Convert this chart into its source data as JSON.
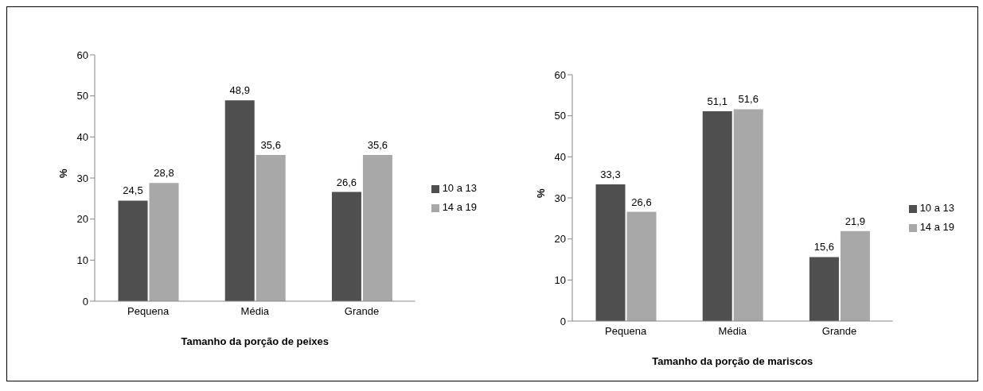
{
  "chart_data": [
    {
      "type": "bar",
      "xlabel": "Tamanho da porção de peixes",
      "ylabel": "%",
      "categories": [
        "Pequena",
        "Média",
        "Grande"
      ],
      "series": [
        {
          "name": "10 a 13",
          "color": "#4f4f4f",
          "values": [
            24.5,
            48.9,
            26.6
          ],
          "value_labels": [
            "24,5",
            "48,9",
            "26,6"
          ]
        },
        {
          "name": "14 a 19",
          "color": "#a8a8a8",
          "values": [
            28.8,
            35.6,
            35.6
          ],
          "value_labels": [
            "28,8",
            "35,6",
            "35,6"
          ]
        }
      ],
      "ylim": [
        0,
        60
      ],
      "yticks": [
        0,
        10,
        20,
        30,
        40,
        50,
        60
      ],
      "legend": "right"
    },
    {
      "type": "bar",
      "xlabel": "Tamanho da porção de mariscos",
      "ylabel": "%",
      "categories": [
        "Pequena",
        "Média",
        "Grande"
      ],
      "series": [
        {
          "name": "10 a 13",
          "color": "#4f4f4f",
          "values": [
            33.3,
            51.1,
            15.6
          ],
          "value_labels": [
            "33,3",
            "51,1",
            "15,6"
          ]
        },
        {
          "name": "14 a 19",
          "color": "#a8a8a8",
          "values": [
            26.6,
            51.6,
            21.9
          ],
          "value_labels": [
            "26,6",
            "51,6",
            "21,9"
          ]
        }
      ],
      "ylim": [
        0,
        60
      ],
      "yticks": [
        0,
        10,
        20,
        30,
        40,
        50,
        60
      ],
      "legend": "right"
    }
  ]
}
